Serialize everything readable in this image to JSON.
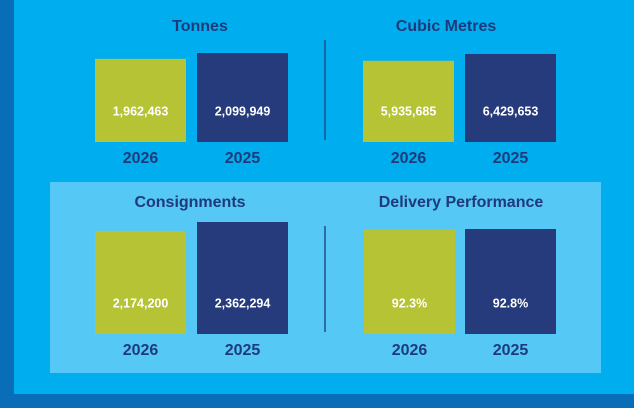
{
  "chart_data": [
    {
      "type": "bar",
      "title": "Tonnes",
      "categories": [
        "2026",
        "2025"
      ],
      "values": [
        1962463,
        2099949
      ],
      "value_labels": [
        "1,962,463",
        "2,099,949"
      ],
      "colors": [
        "#b5c334",
        "#253b7c"
      ]
    },
    {
      "type": "bar",
      "title": "Cubic Metres",
      "categories": [
        "2026",
        "2025"
      ],
      "values": [
        5935685,
        6429653
      ],
      "value_labels": [
        "5,935,685",
        "6,429,653"
      ],
      "colors": [
        "#b5c334",
        "#253b7c"
      ]
    },
    {
      "type": "bar",
      "title": "Consignments",
      "categories": [
        "2026",
        "2025"
      ],
      "values": [
        2174200,
        2362294
      ],
      "value_labels": [
        "2,174,200",
        "2,362,294"
      ],
      "colors": [
        "#b5c334",
        "#253b7c"
      ]
    },
    {
      "type": "bar",
      "title": "Delivery Performance",
      "categories": [
        "2026",
        "2025"
      ],
      "values": [
        92.3,
        92.8
      ],
      "value_labels": [
        "92.3%",
        "92.8%"
      ],
      "colors": [
        "#b5c334",
        "#253b7c"
      ]
    }
  ]
}
